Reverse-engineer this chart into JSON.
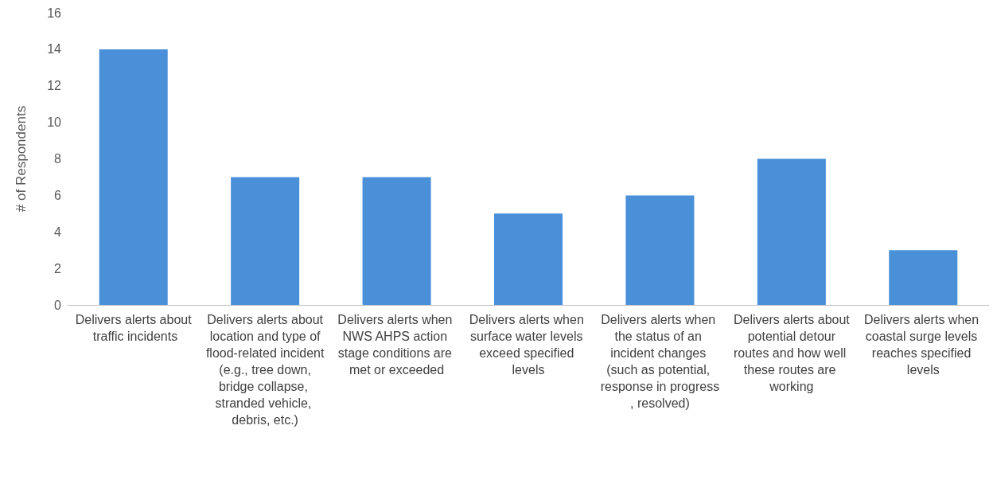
{
  "chart_data": {
    "type": "bar",
    "ylabel": "# of Respondents",
    "categories": [
      "Delivers alerts about traffic incidents",
      "Delivers alerts about location and type of flood-related incident (e.g., tree down, bridge collapse, stranded vehicle, debris, etc.)",
      "Delivers alerts when NWS AHPS action stage conditions are met or exceeded",
      "Delivers alerts when surface water levels exceed specified levels",
      "Delivers alerts when the status of an incident changes (such as potential, response in progress, resolved)",
      "Delivers alerts about potential detour routes and how well these routes are working",
      "Delivers alerts when coastal surge levels reaches specified levels"
    ],
    "values": [
      14,
      7,
      7,
      5,
      6,
      8,
      3
    ],
    "color": "#4a90d9",
    "ylim": [
      0,
      16
    ],
    "yticks": [
      0,
      2,
      4,
      6,
      8,
      10,
      12,
      14,
      16
    ],
    "grid": false
  }
}
